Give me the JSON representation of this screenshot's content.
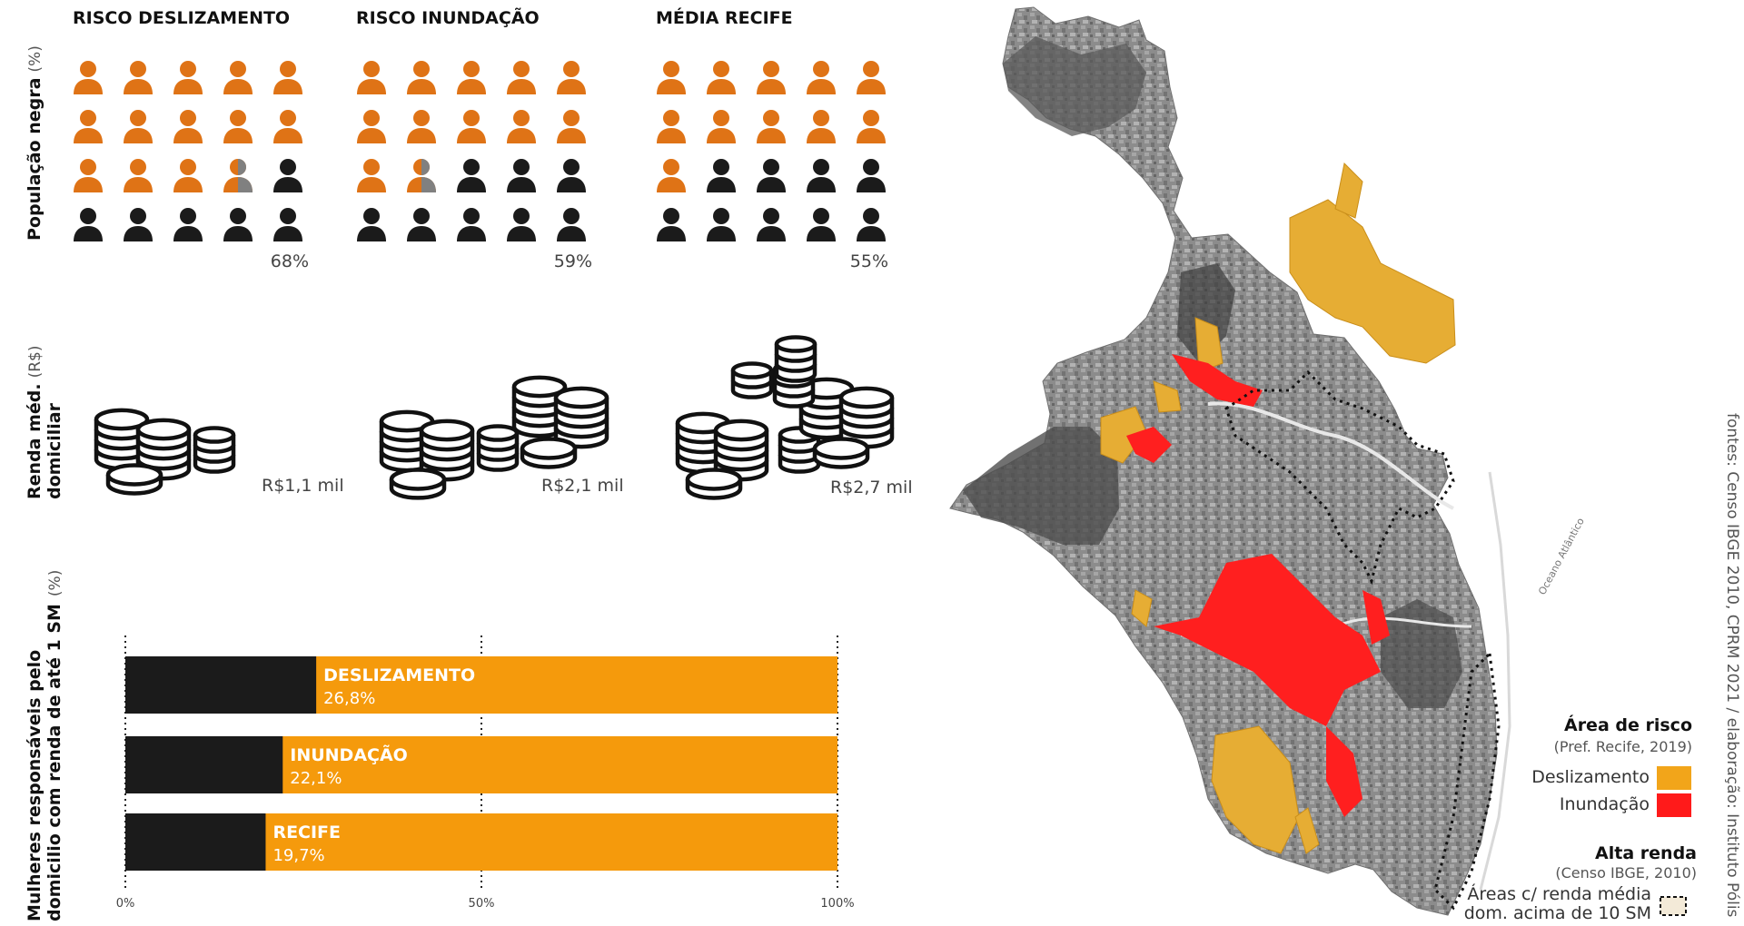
{
  "colors": {
    "orange": "#df7316",
    "black": "#1b1b1b",
    "gray": "#808080",
    "bar_orange": "#f59a0c",
    "landslide": "#f2a51a",
    "flood": "#ff1a1a"
  },
  "pictogram": {
    "row_label": "População negra",
    "row_unit": "(%)",
    "groups": [
      {
        "title": "RISCO DESLIZAMENTO",
        "value": 68,
        "label": "68%"
      },
      {
        "title": "RISCO INUNDAÇÃO",
        "value": 59,
        "label": "59%"
      },
      {
        "title": "MÉDIA RECIFE",
        "value": 55,
        "label": "55%"
      }
    ]
  },
  "income": {
    "row_label_1": "Renda méd.",
    "row_label_2": "domiciliar",
    "row_unit": "(R$)",
    "groups": [
      {
        "value_thousands": 1.1,
        "label": "R$1,1 mil"
      },
      {
        "value_thousands": 2.1,
        "label": "R$2,1 mil"
      },
      {
        "value_thousands": 2.7,
        "label": "R$2,7 mil"
      }
    ]
  },
  "chart_data": {
    "type": "bar",
    "orientation": "horizontal",
    "stacked_to": 100,
    "row_label_1": "Mulheres responsáveis pelo",
    "row_label_2": "domicilio com renda de até 1 SM",
    "row_unit": "(%)",
    "categories": [
      "DESLIZAMENTO",
      "INUNDAÇÃO",
      "RECIFE"
    ],
    "values": [
      26.8,
      22.1,
      19.7
    ],
    "value_labels": [
      "26,8%",
      "22,1%",
      "19,7%"
    ],
    "xlim": [
      0,
      100
    ],
    "ticks": [
      {
        "value": 0,
        "label": "0%"
      },
      {
        "value": 50,
        "label": "50%"
      },
      {
        "value": 100,
        "label": "100%"
      }
    ]
  },
  "map": {
    "ocean_label": "Oceano Atlântico",
    "legend": {
      "risk_title": "Área de risco",
      "risk_source": "(Pref. Recife, 2019)",
      "landslide_label": "Deslizamento",
      "flood_label": "Inundação",
      "income_title": "Alta renda",
      "income_source": "(Censo IBGE, 2010)",
      "high_income_line_1": "Áreas c/ renda média",
      "high_income_line_2": "dom. acima de 10 SM"
    }
  },
  "source": "fontes: Censo IBGE 2010, CPRM 2021 / elaboração: Instituto Pólis"
}
